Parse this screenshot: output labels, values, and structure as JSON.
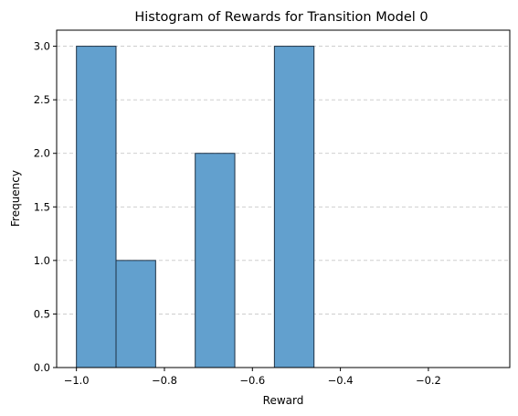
{
  "chart_data": {
    "type": "bar",
    "title": "Histogram of Rewards for Transition Model 0",
    "xlabel": "Reward",
    "ylabel": "Frequency",
    "bins": [
      {
        "start": -1.0,
        "end": -0.91,
        "value": 3
      },
      {
        "start": -0.91,
        "end": -0.82,
        "value": 1
      },
      {
        "start": -0.82,
        "end": -0.73,
        "value": 0
      },
      {
        "start": -0.73,
        "end": -0.64,
        "value": 2
      },
      {
        "start": -0.64,
        "end": -0.55,
        "value": 0
      },
      {
        "start": -0.55,
        "end": -0.46,
        "value": 3
      },
      {
        "start": -0.46,
        "end": -0.37,
        "value": 0
      },
      {
        "start": -0.37,
        "end": -0.28,
        "value": 0
      },
      {
        "start": -0.28,
        "end": -0.19,
        "value": 0
      },
      {
        "start": -0.19,
        "end": -0.1,
        "value": 0
      },
      {
        "start": -0.1,
        "end": -0.06,
        "value": 0
      }
    ],
    "xlim": [
      -1.045,
      -0.015
    ],
    "ylim": [
      0,
      3.15
    ],
    "xticks": [
      -1.0,
      -0.8,
      -0.6,
      -0.4,
      -0.2
    ],
    "xtick_labels": [
      "−1.0",
      "−0.8",
      "−0.6",
      "−0.4",
      "−0.2"
    ],
    "yticks": [
      0.0,
      0.5,
      1.0,
      1.5,
      2.0,
      2.5,
      3.0
    ],
    "ytick_labels": [
      "0.0",
      "0.5",
      "1.0",
      "1.5",
      "2.0",
      "2.5",
      "3.0"
    ],
    "grid": "y-dashed",
    "bar_color": "#62a0ce",
    "edge_color": "#1f3347",
    "grid_color": "#c8c8c8"
  }
}
